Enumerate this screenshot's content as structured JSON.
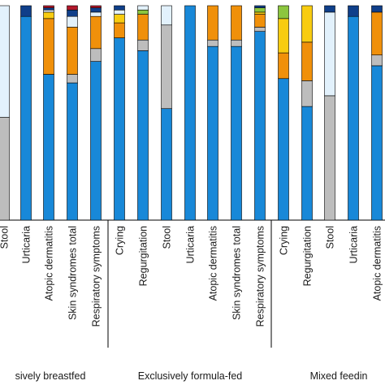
{
  "chart_data": {
    "type": "bar",
    "stacked": true,
    "normalized": true,
    "ylim": [
      0,
      1
    ],
    "legend": "none",
    "grid": false,
    "segment_order_bottom_to_top": [
      "blue",
      "grey",
      "orange",
      "yellow",
      "green",
      "light-blue",
      "dark-navy",
      "dark-red"
    ],
    "colors": {
      "blue": "#1888d8",
      "grey": "#bdbdbd",
      "orange": "#f0900a",
      "yellow": "#f8cc10",
      "green": "#8cc63f",
      "light-blue": "#e2f1fc",
      "dark-navy": "#0f3f8a",
      "dark-red": "#b2182b"
    },
    "groups": [
      {
        "label": "Exclusively breastfed",
        "visible_label": "sively breastfed",
        "categories": [
          {
            "label": "Stool",
            "segments": {
              "blue": 0.0,
              "grey": 0.48,
              "light-blue": 0.52
            }
          },
          {
            "label": "Urticaria",
            "segments": {
              "blue": 0.95,
              "dark-navy": 0.05
            }
          },
          {
            "label": "Atopic dermatitis",
            "segments": {
              "blue": 0.68,
              "orange": 0.26,
              "yellow": 0.03,
              "light-blue": 0.01,
              "dark-navy": 0.01,
              "dark-red": 0.01
            }
          },
          {
            "label": "Skin syndromes total",
            "segments": {
              "blue": 0.64,
              "orange": 0.22,
              "grey": 0.04,
              "light-blue": 0.05,
              "dark-navy": 0.03,
              "dark-red": 0.02
            }
          },
          {
            "label": "Respiratory symptoms",
            "segments": {
              "blue": 0.74,
              "orange": 0.15,
              "grey": 0.06,
              "light-blue": 0.02,
              "dark-navy": 0.02,
              "dark-red": 0.01
            }
          }
        ]
      },
      {
        "label": "Exclusively formula-fed",
        "visible_label": "Exclusively formula-fed",
        "categories": [
          {
            "label": "Crying",
            "segments": {
              "blue": 0.85,
              "orange": 0.07,
              "yellow": 0.04,
              "light-blue": 0.02,
              "dark-navy": 0.02
            }
          },
          {
            "label": "Regurgitation",
            "segments": {
              "blue": 0.79,
              "orange": 0.12,
              "grey": 0.05,
              "green": 0.02,
              "light-blue": 0.02
            }
          },
          {
            "label": "Stool",
            "segments": {
              "blue": 0.52,
              "grey": 0.39,
              "light-blue": 0.09
            }
          },
          {
            "label": "Urticaria",
            "segments": {
              "blue": 1.0
            }
          },
          {
            "label": "Atopic dermatitis",
            "segments": {
              "blue": 0.81,
              "orange": 0.16,
              "grey": 0.03
            }
          },
          {
            "label": "Skin syndromes total",
            "segments": {
              "blue": 0.81,
              "orange": 0.16,
              "grey": 0.03
            }
          },
          {
            "label": "Respiratory symptoms",
            "segments": {
              "blue": 0.88,
              "orange": 0.06,
              "grey": 0.02,
              "green": 0.02,
              "yellow": 0.01,
              "dark-navy": 0.01
            }
          }
        ]
      },
      {
        "label": "Mixed feeding",
        "visible_label": "Mixed feedin",
        "categories": [
          {
            "label": "Crying",
            "segments": {
              "blue": 0.66,
              "orange": 0.12,
              "yellow": 0.16,
              "green": 0.06
            }
          },
          {
            "label": "Regurgitation",
            "segments": {
              "blue": 0.53,
              "orange": 0.18,
              "grey": 0.12,
              "yellow": 0.17
            }
          },
          {
            "label": "Stool",
            "segments": {
              "blue": 0.0,
              "grey": 0.58,
              "light-blue": 0.39,
              "dark-navy": 0.03
            }
          },
          {
            "label": "Urticaria",
            "segments": {
              "blue": 0.95,
              "dark-navy": 0.05
            }
          },
          {
            "label": "Atopic dermatitis",
            "segments": {
              "blue": 0.72,
              "orange": 0.2,
              "grey": 0.05,
              "dark-navy": 0.03
            }
          }
        ]
      }
    ]
  }
}
